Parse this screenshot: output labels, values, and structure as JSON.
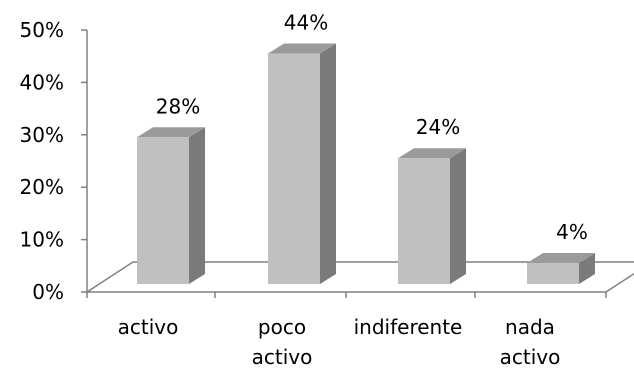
{
  "chart_data": {
    "type": "bar",
    "categories": [
      [
        "activo"
      ],
      [
        "poco",
        "activo"
      ],
      [
        "indiferente"
      ],
      [
        "nada",
        "activo"
      ]
    ],
    "values": [
      28,
      44,
      24,
      4
    ],
    "data_labels": [
      "28%",
      "44%",
      "24%",
      "4%"
    ],
    "ylim": [
      0,
      50
    ],
    "yticks": [
      "0%",
      "10%",
      "20%",
      "30%",
      "40%",
      "50%"
    ],
    "grid": false,
    "legend": "none",
    "three_d": true,
    "colors": {
      "bar_front": "#c0c0c0",
      "bar_top": "#9a9a9a",
      "bar_side": "#7a7a7a",
      "floor_line": "#808080",
      "axis_line": "#808080"
    }
  }
}
